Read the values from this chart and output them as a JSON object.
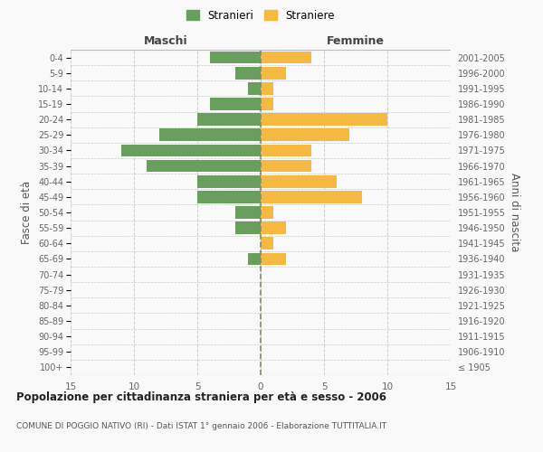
{
  "age_groups": [
    "100+",
    "95-99",
    "90-94",
    "85-89",
    "80-84",
    "75-79",
    "70-74",
    "65-69",
    "60-64",
    "55-59",
    "50-54",
    "45-49",
    "40-44",
    "35-39",
    "30-34",
    "25-29",
    "20-24",
    "15-19",
    "10-14",
    "5-9",
    "0-4"
  ],
  "birth_years": [
    "≤ 1905",
    "1906-1910",
    "1911-1915",
    "1916-1920",
    "1921-1925",
    "1926-1930",
    "1931-1935",
    "1936-1940",
    "1941-1945",
    "1946-1950",
    "1951-1955",
    "1956-1960",
    "1961-1965",
    "1966-1970",
    "1971-1975",
    "1976-1980",
    "1981-1985",
    "1986-1990",
    "1991-1995",
    "1996-2000",
    "2001-2005"
  ],
  "males": [
    0,
    0,
    0,
    0,
    0,
    0,
    0,
    1,
    0,
    2,
    2,
    5,
    5,
    9,
    11,
    8,
    5,
    4,
    1,
    2,
    4
  ],
  "females": [
    0,
    0,
    0,
    0,
    0,
    0,
    0,
    2,
    1,
    2,
    1,
    8,
    6,
    4,
    4,
    7,
    10,
    1,
    1,
    2,
    4
  ],
  "male_color": "#6a9e5e",
  "female_color": "#f5b942",
  "background_color": "#f9f9f9",
  "grid_color": "#cccccc",
  "title": "Popolazione per cittadinanza straniera per età e sesso - 2006",
  "subtitle": "COMUNE DI POGGIO NATIVO (RI) - Dati ISTAT 1° gennaio 2006 - Elaborazione TUTTITALIA.IT",
  "left_header": "Maschi",
  "right_header": "Femmine",
  "left_ylabel": "Fasce di età",
  "right_ylabel": "Anni di nascita",
  "xlim": 15,
  "legend_stranieri": "Stranieri",
  "legend_straniere": "Straniere"
}
